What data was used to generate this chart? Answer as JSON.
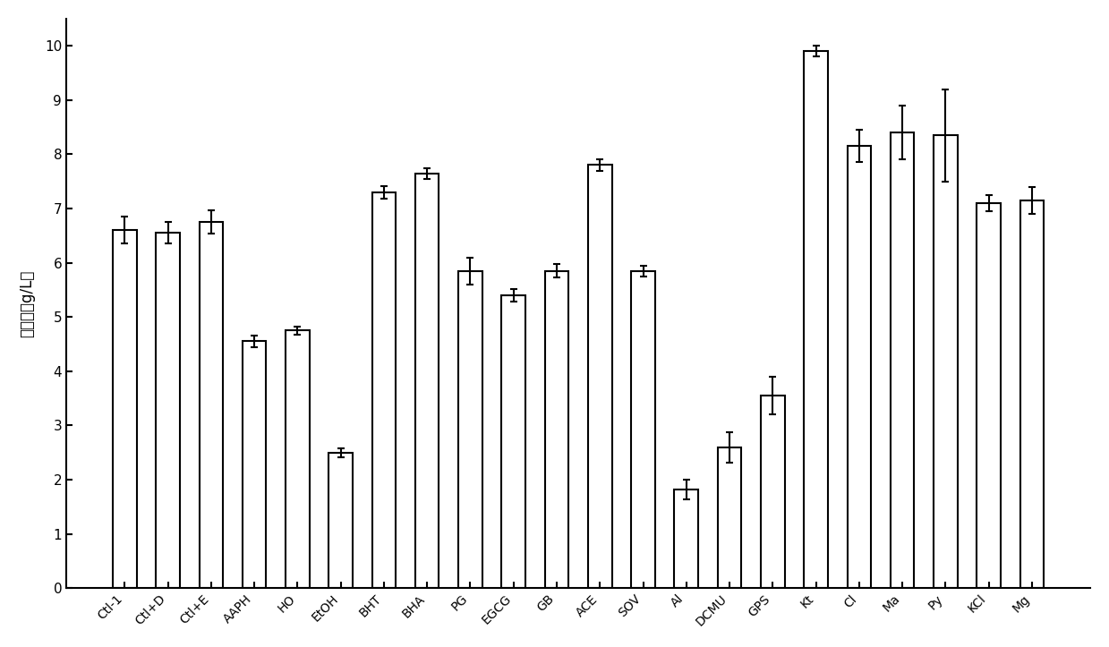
{
  "categories": [
    "Ctl-1",
    "Ctl+D",
    "Ctl+E",
    "AAPH",
    "HO",
    "EtOH",
    "BHT",
    "BHA",
    "PG",
    "EGCG",
    "GB",
    "ACE",
    "SOV",
    "Al",
    "DCMU",
    "GPS",
    "Kt",
    "Cl",
    "Ma",
    "Py",
    "KCl",
    "Mg"
  ],
  "values": [
    6.6,
    6.55,
    6.75,
    4.55,
    4.75,
    2.5,
    7.3,
    7.65,
    5.85,
    5.4,
    5.85,
    7.8,
    5.85,
    1.82,
    2.6,
    3.55,
    9.9,
    8.15,
    8.4,
    8.35,
    7.1,
    7.15
  ],
  "errors": [
    0.25,
    0.2,
    0.22,
    0.1,
    0.08,
    0.08,
    0.12,
    0.1,
    0.25,
    0.12,
    0.12,
    0.1,
    0.1,
    0.18,
    0.28,
    0.35,
    0.1,
    0.3,
    0.5,
    0.85,
    0.15,
    0.25
  ],
  "ylabel": "生物量（g/L）",
  "ylim": [
    0,
    10.5
  ],
  "yticks": [
    0,
    1,
    2,
    3,
    4,
    5,
    6,
    7,
    8,
    9,
    10
  ],
  "bar_color": "#ffffff",
  "bar_edgecolor": "#000000",
  "bar_linewidth": 1.5,
  "error_color": "#000000",
  "figsize": [
    12.39,
    7.23
  ],
  "dpi": 100,
  "bar_width": 0.55
}
